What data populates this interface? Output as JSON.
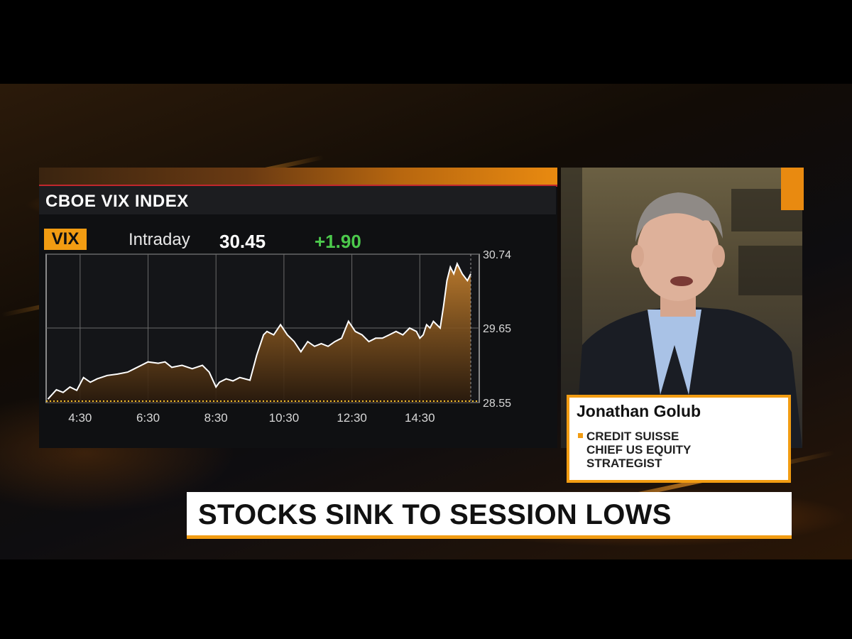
{
  "chart_data": {
    "type": "area",
    "title": "CBOE VIX INDEX",
    "ticker": "VIX",
    "period": "Intraday",
    "last": "30.45",
    "change": "+1.90",
    "x_ticks": [
      "4:30",
      "6:30",
      "8:30",
      "10:30",
      "12:30",
      "14:30"
    ],
    "y_ticks": [
      "30.74",
      "29.65",
      "28.55"
    ],
    "ylim": [
      28.55,
      30.74
    ],
    "xlim": [
      3.5,
      16.25
    ],
    "grid": true,
    "x": [
      3.55,
      3.8,
      4.0,
      4.2,
      4.4,
      4.6,
      4.8,
      5.0,
      5.3,
      5.6,
      5.9,
      6.1,
      6.3,
      6.5,
      6.8,
      7.0,
      7.2,
      7.5,
      7.8,
      8.1,
      8.3,
      8.5,
      8.6,
      8.8,
      9.0,
      9.2,
      9.5,
      9.7,
      9.9,
      10.0,
      10.2,
      10.4,
      10.6,
      10.8,
      11.0,
      11.2,
      11.4,
      11.6,
      11.8,
      12.0,
      12.2,
      12.4,
      12.6,
      12.8,
      13.0,
      13.2,
      13.4,
      13.6,
      13.8,
      14.0,
      14.2,
      14.4,
      14.5,
      14.6,
      14.7,
      14.8,
      14.9,
      15.0,
      15.1,
      15.2,
      15.3,
      15.4,
      15.5,
      15.6,
      15.75,
      15.9,
      16.0
    ],
    "values": [
      28.6,
      28.74,
      28.7,
      28.78,
      28.73,
      28.92,
      28.85,
      28.9,
      28.95,
      28.97,
      29.0,
      29.05,
      29.1,
      29.15,
      29.13,
      29.15,
      29.07,
      29.1,
      29.05,
      29.1,
      29.0,
      28.78,
      28.85,
      28.9,
      28.87,
      28.92,
      28.88,
      29.25,
      29.55,
      29.6,
      29.55,
      29.7,
      29.55,
      29.45,
      29.3,
      29.45,
      29.38,
      29.42,
      29.38,
      29.45,
      29.5,
      29.75,
      29.6,
      29.55,
      29.45,
      29.5,
      29.5,
      29.55,
      29.6,
      29.55,
      29.65,
      29.6,
      29.5,
      29.55,
      29.7,
      29.65,
      29.75,
      29.7,
      29.65,
      29.98,
      30.35,
      30.55,
      30.45,
      30.6,
      30.45,
      30.35,
      30.45
    ]
  },
  "guest": {
    "name": "Jonathan Golub",
    "title_lines": [
      "CREDIT SUISSE",
      "CHIEF US EQUITY",
      "STRATEGIST"
    ]
  },
  "headline": "STOCKS SINK TO SESSION LOWS",
  "colors": {
    "accent": "#f29c12",
    "positive": "#4cc94c",
    "line": "#ffffff"
  }
}
